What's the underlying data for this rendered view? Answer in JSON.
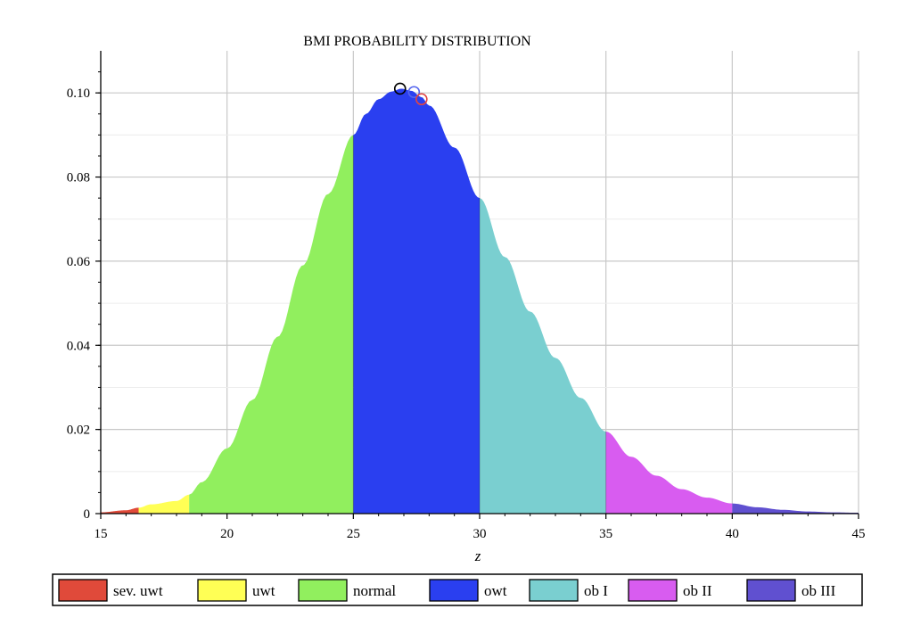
{
  "chart_data": {
    "type": "area",
    "title": "BMI PROBABILITY DISTRIBUTION",
    "xlabel": "z",
    "ylabel": "",
    "xlim": [
      15,
      45
    ],
    "ylim": [
      0,
      0.11
    ],
    "x_ticks": [
      "15",
      "20",
      "25",
      "30",
      "35",
      "40",
      "45"
    ],
    "y_ticks": [
      "0",
      "0.02",
      "0.04",
      "0.06",
      "0.08",
      "0.10"
    ],
    "grid": true,
    "legend_position": "bottom",
    "curve": [
      {
        "x": 15,
        "y": 0.0003
      },
      {
        "x": 16,
        "y": 0.0008
      },
      {
        "x": 16.5,
        "y": 0.0014
      },
      {
        "x": 17,
        "y": 0.0022
      },
      {
        "x": 18,
        "y": 0.003
      },
      {
        "x": 18.5,
        "y": 0.0045
      },
      {
        "x": 19,
        "y": 0.0075
      },
      {
        "x": 20,
        "y": 0.0155
      },
      {
        "x": 21,
        "y": 0.027
      },
      {
        "x": 22,
        "y": 0.042
      },
      {
        "x": 23,
        "y": 0.059
      },
      {
        "x": 24,
        "y": 0.076
      },
      {
        "x": 25,
        "y": 0.09
      },
      {
        "x": 25.5,
        "y": 0.095
      },
      {
        "x": 26,
        "y": 0.0985
      },
      {
        "x": 26.5,
        "y": 0.1003
      },
      {
        "x": 26.9,
        "y": 0.101
      },
      {
        "x": 27.3,
        "y": 0.1005
      },
      {
        "x": 27.7,
        "y": 0.099
      },
      {
        "x": 28,
        "y": 0.097
      },
      {
        "x": 29,
        "y": 0.087
      },
      {
        "x": 30,
        "y": 0.075
      },
      {
        "x": 31,
        "y": 0.061
      },
      {
        "x": 32,
        "y": 0.048
      },
      {
        "x": 33,
        "y": 0.037
      },
      {
        "x": 34,
        "y": 0.0275
      },
      {
        "x": 35,
        "y": 0.0195
      },
      {
        "x": 36,
        "y": 0.0135
      },
      {
        "x": 37,
        "y": 0.009
      },
      {
        "x": 38,
        "y": 0.0058
      },
      {
        "x": 39,
        "y": 0.0038
      },
      {
        "x": 40,
        "y": 0.0024
      },
      {
        "x": 41,
        "y": 0.0015
      },
      {
        "x": 42,
        "y": 0.0009
      },
      {
        "x": 43,
        "y": 0.0005
      },
      {
        "x": 44,
        "y": 0.0003
      },
      {
        "x": 45,
        "y": 0.0002
      }
    ],
    "regions": [
      {
        "name": "sev. uwt",
        "from": 15,
        "to": 16.5,
        "color": "#e04a3a"
      },
      {
        "name": "uwt",
        "from": 16.5,
        "to": 18.5,
        "color": "#ffff55"
      },
      {
        "name": "normal",
        "from": 18.5,
        "to": 25,
        "color": "#91ef5e"
      },
      {
        "name": "owt",
        "from": 25,
        "to": 30,
        "color": "#2a3ff0"
      },
      {
        "name": "ob I",
        "from": 30,
        "to": 35,
        "color": "#7acfd0"
      },
      {
        "name": "ob II",
        "from": 35,
        "to": 40,
        "color": "#d85cf0"
      },
      {
        "name": "ob III",
        "from": 40,
        "to": 45,
        "color": "#6050d0"
      }
    ],
    "markers": [
      {
        "x": 26.85,
        "y": 0.101,
        "color": "#000000"
      },
      {
        "x": 27.4,
        "y": 0.1002,
        "color": "#5566ee"
      },
      {
        "x": 27.7,
        "y": 0.0985,
        "color": "#e04444"
      }
    ]
  }
}
